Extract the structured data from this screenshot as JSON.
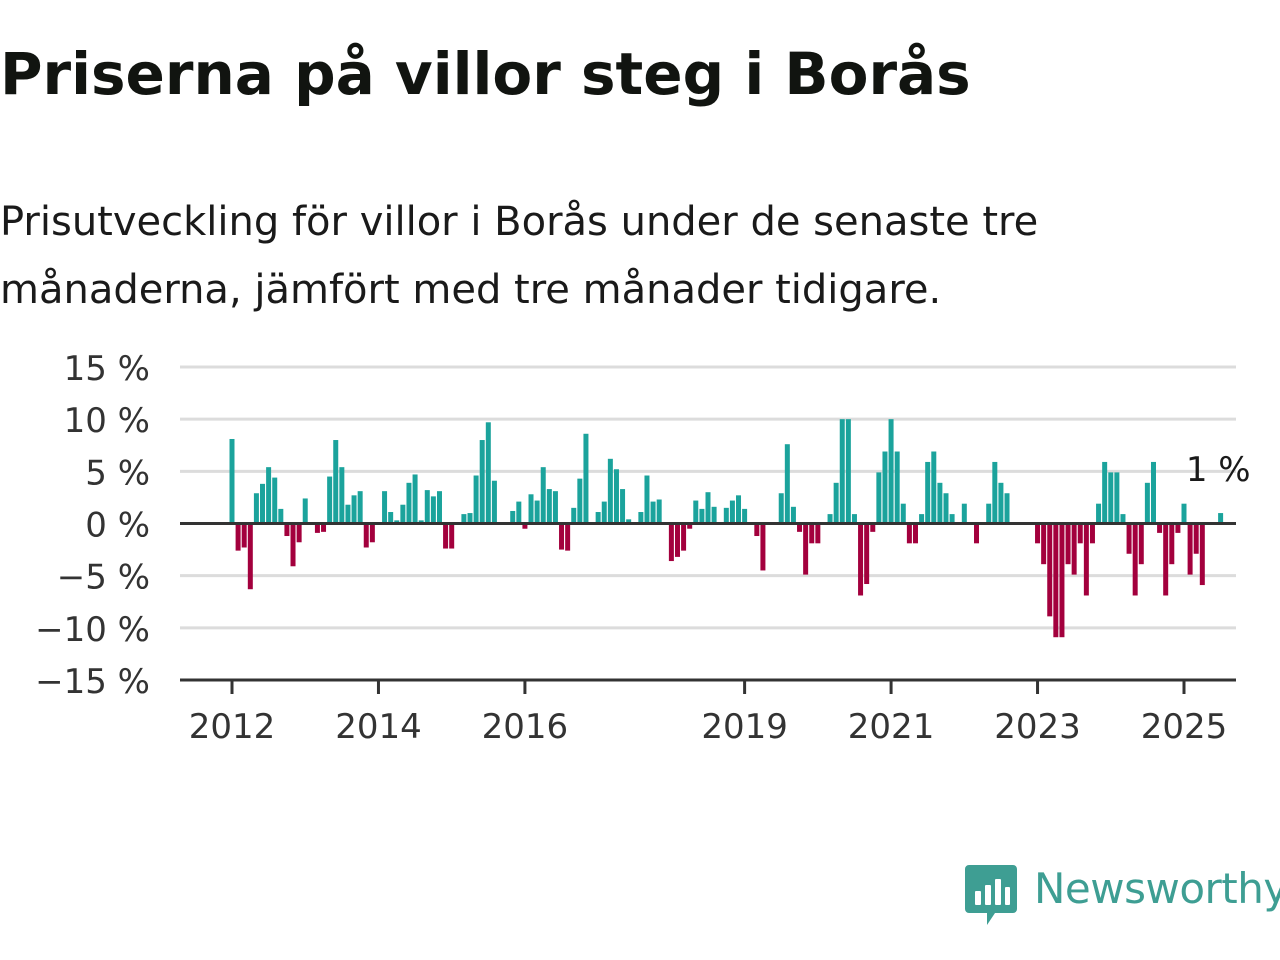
{
  "title": "Priserna på villor steg i Borås",
  "subtitle": "Prisutveckling för villor i Borås under de senaste tre månaderna, jämfört med tre månader tidigare.",
  "brand": {
    "name": "Newsworthy",
    "color": "#3e9e93"
  },
  "colors": {
    "positive": "#1ba39c",
    "negative": "#a3003d",
    "grid": "#dcdcdc",
    "axis": "#333333",
    "text": "#333333"
  },
  "chart_data": {
    "type": "bar",
    "title": "Priserna på villor steg i Borås",
    "xlabel": "",
    "ylabel": "",
    "ylim": [
      -15,
      15
    ],
    "yticks": [
      15,
      10,
      5,
      0,
      -5,
      -10,
      -15
    ],
    "ytick_labels": [
      "15 %",
      "10 %",
      "5 %",
      "0 %",
      "−5 %",
      "−10 %",
      "−15 %"
    ],
    "xticks": [
      2012,
      2014,
      2016,
      2019,
      2021,
      2023,
      2025
    ],
    "xtick_labels": [
      "2012",
      "2014",
      "2016",
      "2019",
      "2021",
      "2023",
      "2025"
    ],
    "grid": true,
    "annotation": {
      "text": "1 %",
      "position": "last-bar"
    },
    "series": [
      {
        "start": "2012-01",
        "frequency": "monthly",
        "values": [
          8.1,
          -2.6,
          -2.3,
          -6.3,
          2.9,
          3.8,
          5.4,
          4.4,
          1.4,
          -1.2,
          -4.1,
          -1.8,
          2.4,
          0,
          -0.9,
          -0.8,
          4.5,
          8.0,
          5.4,
          1.8,
          2.7,
          3.1,
          -2.3,
          -1.8,
          0,
          3.1,
          1.1,
          0.3,
          1.8,
          3.9,
          4.7,
          0.3,
          3.2,
          2.6,
          3.1,
          -2.4,
          -2.4,
          0,
          0.9,
          1.0,
          4.6,
          8.0,
          9.7,
          4.1,
          0,
          0,
          1.2,
          2.1,
          -0.5,
          2.8,
          2.2,
          5.4,
          3.3,
          3.1,
          -2.5,
          -2.6,
          1.5,
          4.3,
          8.6,
          0,
          1.1,
          2.1,
          6.2,
          5.2,
          3.3,
          0.4,
          0,
          1.1,
          4.6,
          2.1,
          2.3,
          0,
          -3.6,
          -3.2,
          -2.6,
          -0.5,
          2.2,
          1.4,
          3.0,
          1.6,
          0,
          1.5,
          2.2,
          2.7,
          1.4,
          0,
          -1.2,
          -4.5,
          0,
          0,
          2.9,
          7.6,
          1.6,
          -0.8,
          -4.9,
          -1.9,
          -1.9,
          0,
          0.9,
          3.9,
          10.0,
          10.0,
          0.9,
          -6.9,
          -5.8,
          -0.8,
          4.9,
          6.9,
          10.0,
          6.9,
          1.9,
          -1.9,
          -1.9,
          0.9,
          5.9,
          6.9,
          3.9,
          2.9,
          0.9,
          0,
          1.9,
          0,
          -1.9,
          0,
          1.9,
          5.9,
          3.9,
          2.9,
          0,
          0,
          0,
          0,
          -1.9,
          -3.9,
          -8.9,
          -10.9,
          -10.9,
          -3.9,
          -4.9,
          -1.9,
          -6.9,
          -1.9,
          1.9,
          5.9,
          4.9,
          4.9,
          0.9,
          -2.9,
          -6.9,
          -3.9,
          3.9,
          5.9,
          -0.9,
          -6.9,
          -3.9,
          -0.9,
          1.9,
          -4.9,
          -2.9,
          -5.9,
          0,
          0,
          1.0
        ]
      }
    ]
  }
}
